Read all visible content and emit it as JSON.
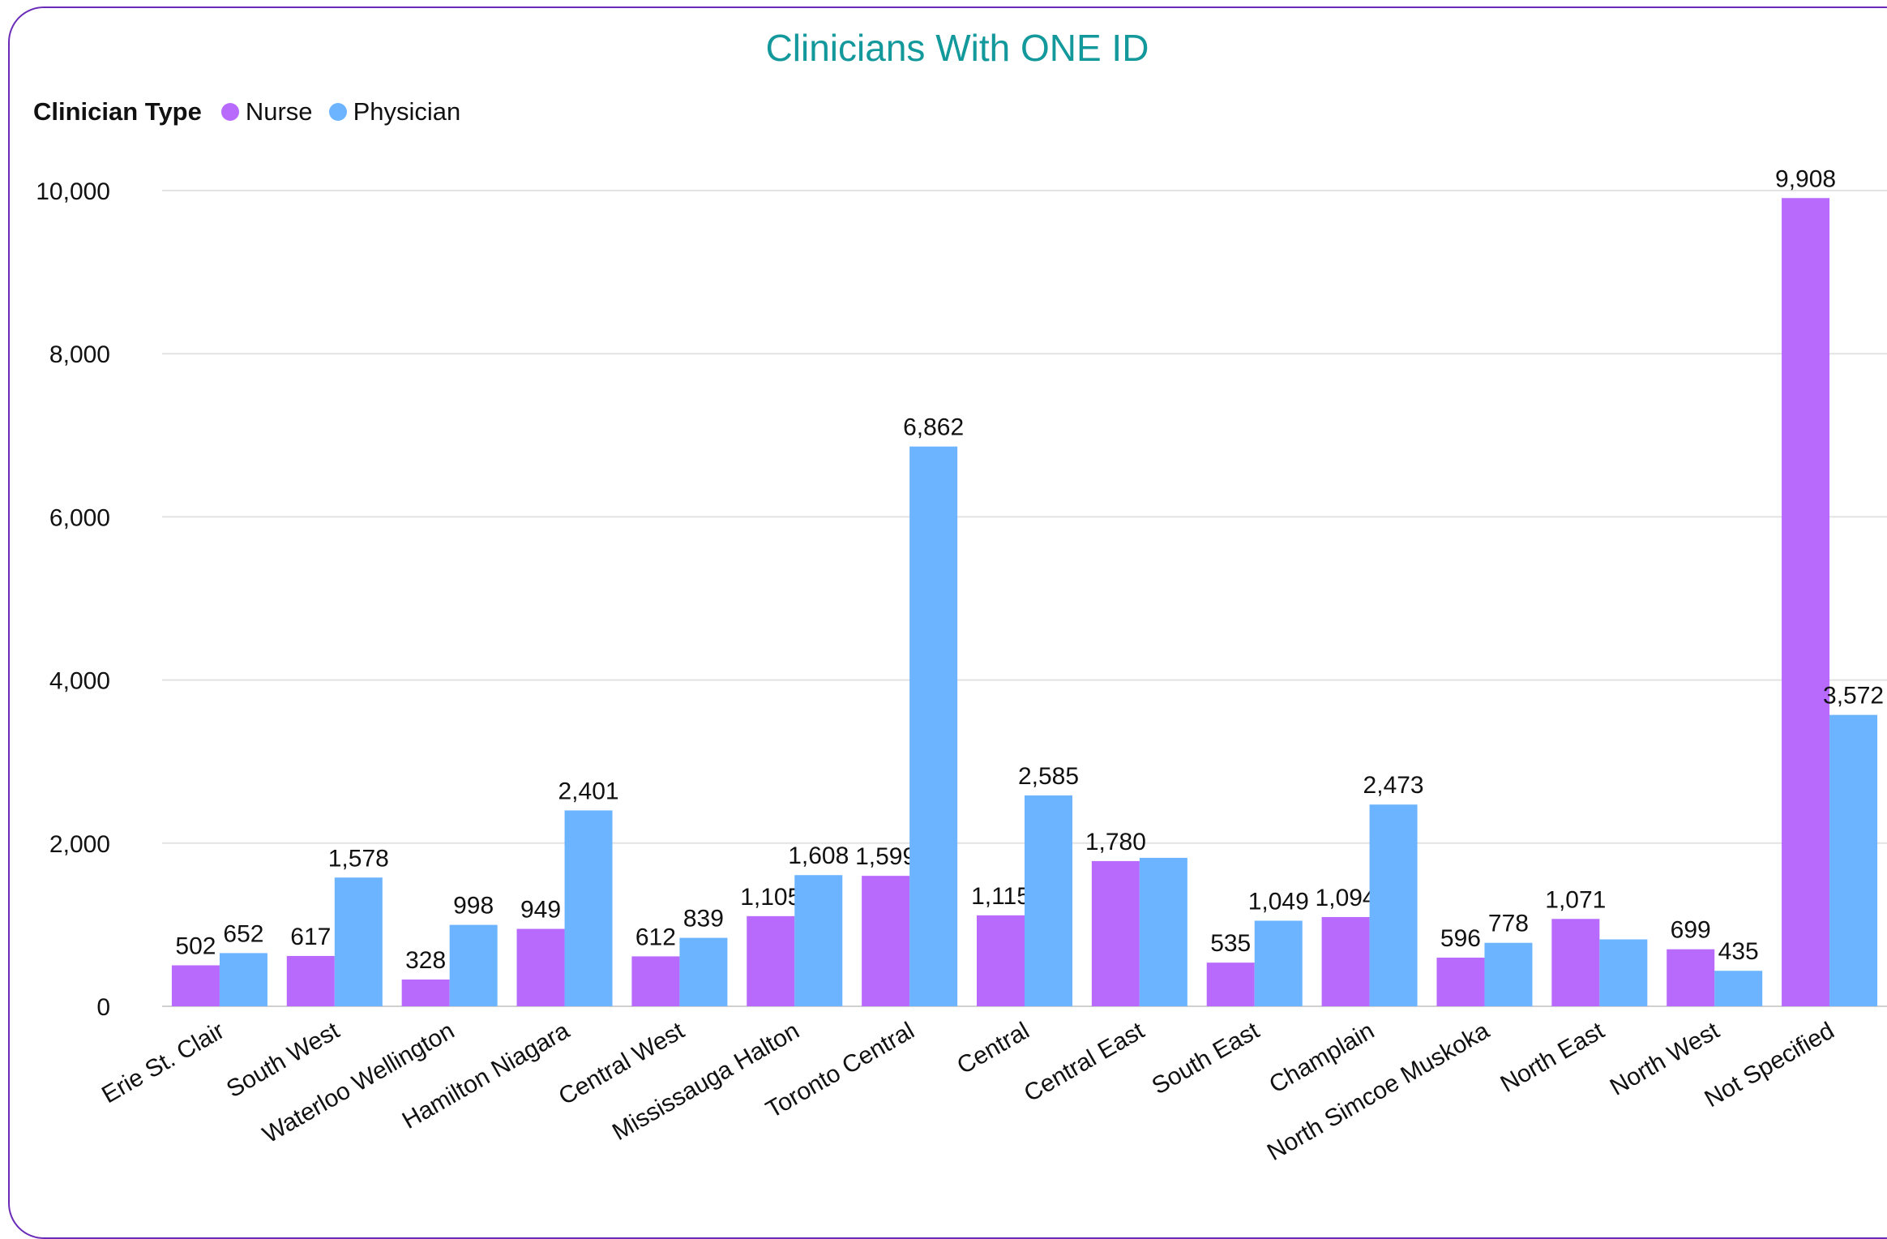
{
  "chart_data": {
    "type": "bar",
    "title": "Clinicians With ONE ID",
    "legend_title": "Clinician Type",
    "legend_position": "top-left",
    "categories": [
      "Erie St. Clair",
      "South West",
      "Waterloo Wellington",
      "Hamilton Niagara",
      "Central West",
      "Mississauga Halton",
      "Toronto Central",
      "Central",
      "Central East",
      "South East",
      "Champlain",
      "North Simcoe Muskoka",
      "North East",
      "North West",
      "Not Specified"
    ],
    "series": [
      {
        "name": "Nurse",
        "color": "#b86afd",
        "values": [
          502,
          617,
          328,
          949,
          612,
          1105,
          1599,
          1115,
          1780,
          535,
          1094,
          596,
          1071,
          699,
          9908
        ],
        "labels": [
          "502",
          "617",
          "328",
          "949",
          "612",
          "1,105",
          "1,599",
          "1,115",
          "1,780",
          "535",
          "1,094",
          "596",
          "1,071",
          "699",
          "9,908"
        ]
      },
      {
        "name": "Physician",
        "color": "#6cb4ff",
        "values": [
          652,
          1578,
          998,
          2401,
          839,
          1608,
          6862,
          2585,
          1820,
          1049,
          2473,
          778,
          820,
          435,
          3572
        ],
        "labels": [
          "652",
          "1,578",
          "998",
          "2,401",
          "839",
          "1,608",
          "6,862",
          "2,585",
          "",
          "1,049",
          "2,473",
          "778",
          "",
          "435",
          "3,572"
        ]
      }
    ],
    "yticks": [
      "0",
      "2,000",
      "4,000",
      "6,000",
      "8,000",
      "10,000"
    ],
    "ytick_values": [
      0,
      2000,
      4000,
      6000,
      8000,
      10000
    ],
    "ylim": [
      0,
      10000
    ],
    "grid": true
  }
}
